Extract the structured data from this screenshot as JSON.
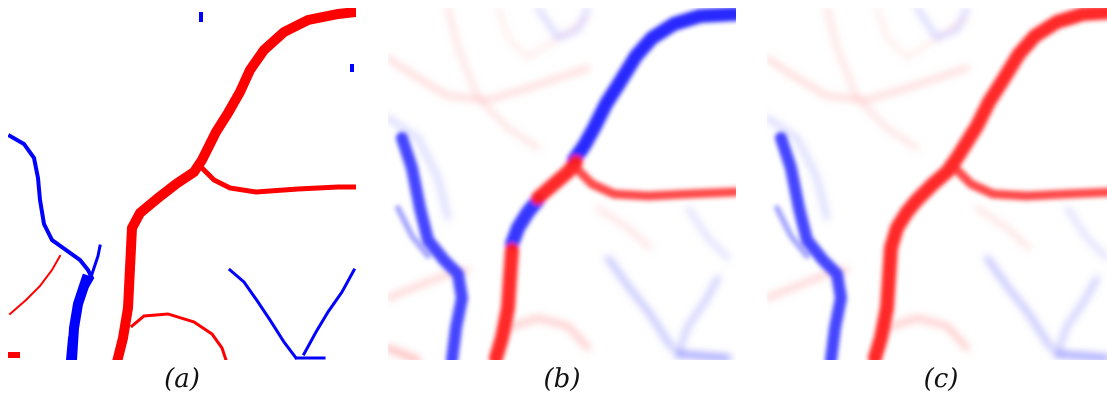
{
  "figure": {
    "panels": [
      {
        "id": "a",
        "caption": "(a)"
      },
      {
        "id": "b",
        "caption": "(b)"
      },
      {
        "id": "c",
        "caption": "(c)"
      }
    ],
    "colors": {
      "red": "#ff0000",
      "blue": "#0000ff",
      "background": "#ffffff"
    }
  }
}
